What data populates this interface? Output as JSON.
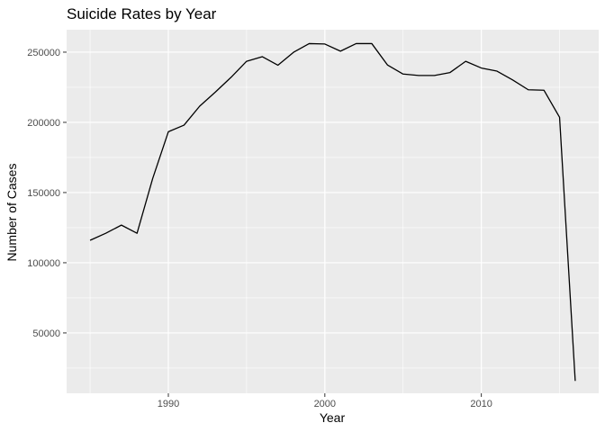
{
  "chart_data": {
    "type": "line",
    "title": "Suicide Rates by Year",
    "xlabel": "Year",
    "ylabel": "Number of Cases",
    "xlim": [
      1983.5,
      2017.5
    ],
    "ylim": [
      7000,
      266000
    ],
    "x_ticks": [
      1990,
      2000,
      2010
    ],
    "x_tick_labels": [
      "1990",
      "2000",
      "2010"
    ],
    "y_ticks": [
      50000,
      100000,
      150000,
      200000,
      250000
    ],
    "y_tick_labels": [
      "50000",
      "100000",
      "150000",
      "200000",
      "250000"
    ],
    "grid": true,
    "legend": "none",
    "line_color": "#000000",
    "panel_color": "#ebebeb",
    "grid_color": "#ffffff",
    "series": [
      {
        "x": [
          1985,
          1986,
          1987,
          1988,
          1989,
          1990,
          1991,
          1992,
          1993,
          1994,
          1995,
          1996,
          1997,
          1998,
          1999,
          2000,
          2001,
          2002,
          2003,
          2004,
          2005,
          2006,
          2007,
          2008,
          2009,
          2010,
          2011,
          2012,
          2013,
          2014,
          2015,
          2016
        ],
        "values": [
          116000,
          121000,
          126800,
          121000,
          160000,
          193300,
          198000,
          211500,
          221500,
          232000,
          243500,
          246800,
          240700,
          249900,
          256100,
          255800,
          250700,
          256100,
          256100,
          240900,
          234400,
          233400,
          233400,
          235500,
          243500,
          238700,
          236500,
          230200,
          223200,
          222900,
          203600,
          15800
        ]
      }
    ]
  }
}
